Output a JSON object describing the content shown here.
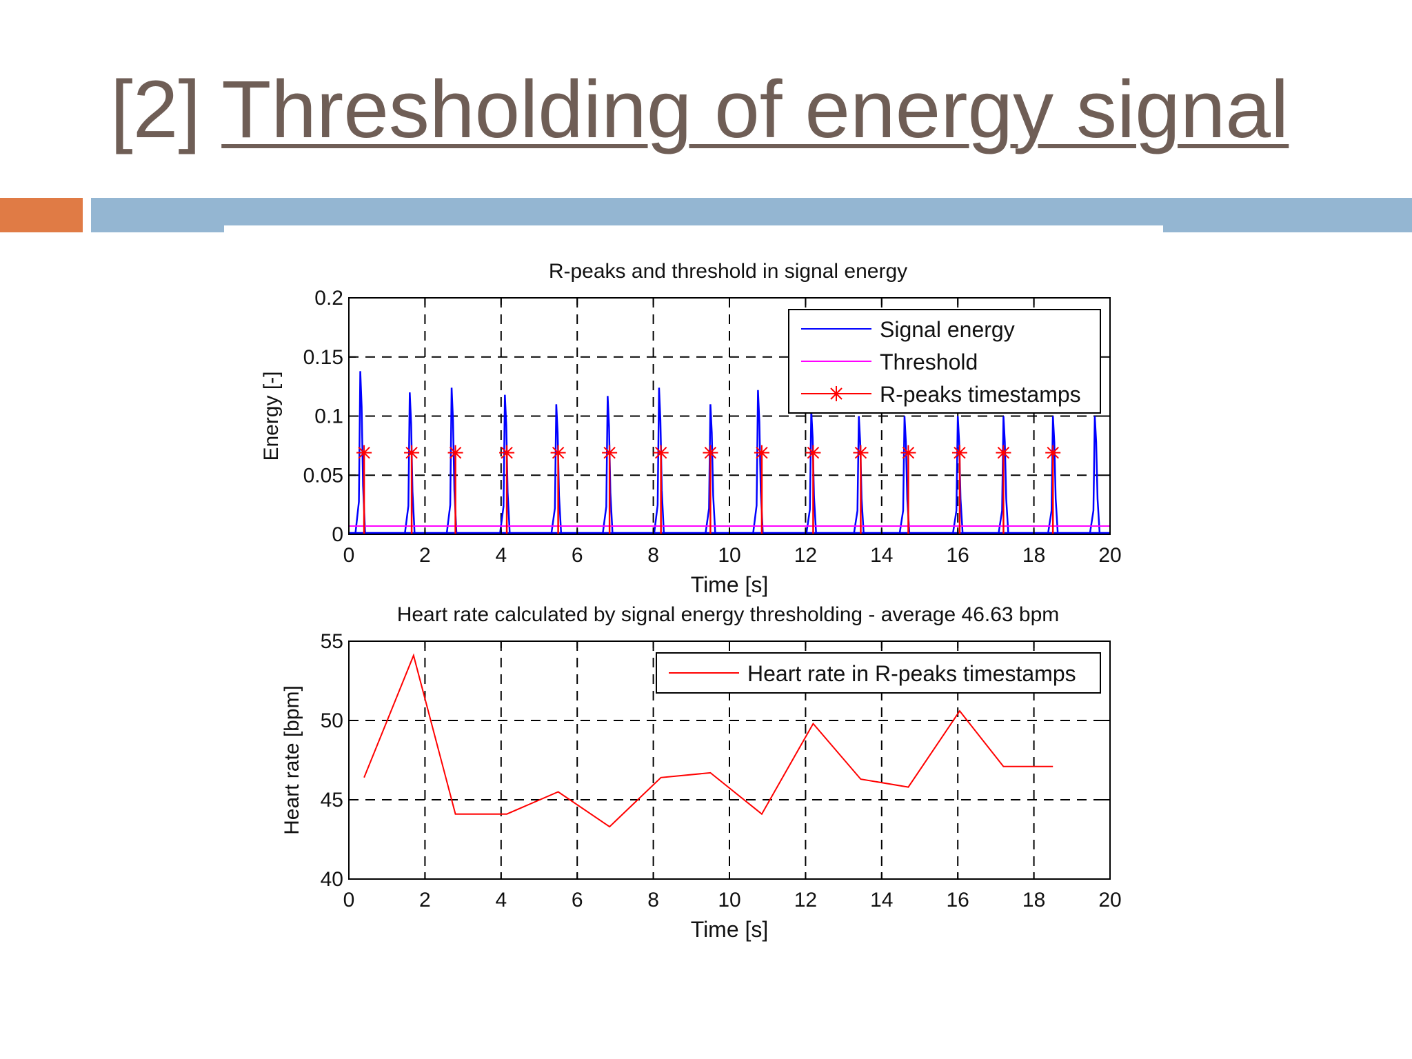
{
  "slide": {
    "title_number": "[2]",
    "title_text": "Thresholding of energy signal",
    "title_color": "#6f5e56",
    "accent_orange": "#e07b45",
    "accent_blue": "#94b6d2"
  },
  "chart_data": [
    {
      "type": "line",
      "title": "R-peaks and threshold in signal energy",
      "xlabel": "Time [s]",
      "ylabel": "Energy [-]",
      "xlim": [
        0,
        20
      ],
      "ylim": [
        0,
        0.2
      ],
      "xticks": [
        0,
        2,
        4,
        6,
        8,
        10,
        12,
        14,
        16,
        18,
        20
      ],
      "xtick_labels": [
        "0",
        "2",
        "4",
        "6",
        "8",
        "10",
        "12",
        "14",
        "16",
        "18",
        "20"
      ],
      "yticks": [
        0,
        0.05,
        0.1,
        0.15,
        0.2
      ],
      "ytick_labels": [
        "0",
        "0.05",
        "0.1",
        "0.15",
        "0.2"
      ],
      "grid": true,
      "legend_position": "top-right",
      "series": [
        {
          "name": "Signal energy",
          "kind": "spikes",
          "color": "#0000ff",
          "peaks": [
            {
              "t": 0.3,
              "v": 0.138
            },
            {
              "t": 1.6,
              "v": 0.12
            },
            {
              "t": 2.7,
              "v": 0.124
            },
            {
              "t": 4.1,
              "v": 0.118
            },
            {
              "t": 5.45,
              "v": 0.11
            },
            {
              "t": 6.8,
              "v": 0.117
            },
            {
              "t": 8.15,
              "v": 0.124
            },
            {
              "t": 9.5,
              "v": 0.11
            },
            {
              "t": 10.75,
              "v": 0.122
            },
            {
              "t": 12.15,
              "v": 0.105
            },
            {
              "t": 13.4,
              "v": 0.1
            },
            {
              "t": 14.6,
              "v": 0.1
            },
            {
              "t": 16.0,
              "v": 0.1
            },
            {
              "t": 17.2,
              "v": 0.1
            },
            {
              "t": 18.5,
              "v": 0.1
            },
            {
              "t": 19.6,
              "v": 0.1
            }
          ]
        },
        {
          "name": "Threshold",
          "kind": "hline",
          "color": "#ff00ff",
          "value": 0.007
        },
        {
          "name": "R-peaks timestamps",
          "kind": "markers",
          "color": "#ff0000",
          "marker": "*",
          "value": 0.069,
          "x": [
            0.4,
            1.65,
            2.8,
            4.15,
            5.5,
            6.85,
            8.2,
            9.5,
            10.85,
            12.2,
            13.45,
            14.7,
            16.05,
            17.2,
            18.5
          ]
        }
      ]
    },
    {
      "type": "line",
      "title": "Heart rate calculated by signal energy thresholding - average 46.63 bpm",
      "xlabel": "Time [s]",
      "ylabel": "Heart rate [bpm]",
      "xlim": [
        0,
        20
      ],
      "ylim": [
        40,
        55
      ],
      "xticks": [
        0,
        2,
        4,
        6,
        8,
        10,
        12,
        14,
        16,
        18,
        20
      ],
      "xtick_labels": [
        "0",
        "2",
        "4",
        "6",
        "8",
        "10",
        "12",
        "14",
        "16",
        "18",
        "20"
      ],
      "yticks": [
        40,
        45,
        50,
        55
      ],
      "ytick_labels": [
        "40",
        "45",
        "50",
        "55"
      ],
      "grid": true,
      "legend_position": "top-right",
      "series": [
        {
          "name": "Heart rate in R-peaks timestamps",
          "color": "#ff0000",
          "x": [
            0.4,
            1.7,
            2.8,
            4.15,
            5.5,
            6.85,
            8.2,
            9.5,
            10.85,
            12.2,
            13.45,
            14.7,
            16.05,
            17.2,
            18.5
          ],
          "values": [
            46.4,
            54.1,
            44.1,
            44.1,
            45.5,
            43.3,
            46.4,
            46.7,
            44.1,
            49.8,
            46.3,
            45.8,
            50.6,
            47.1,
            47.1
          ]
        }
      ]
    }
  ]
}
